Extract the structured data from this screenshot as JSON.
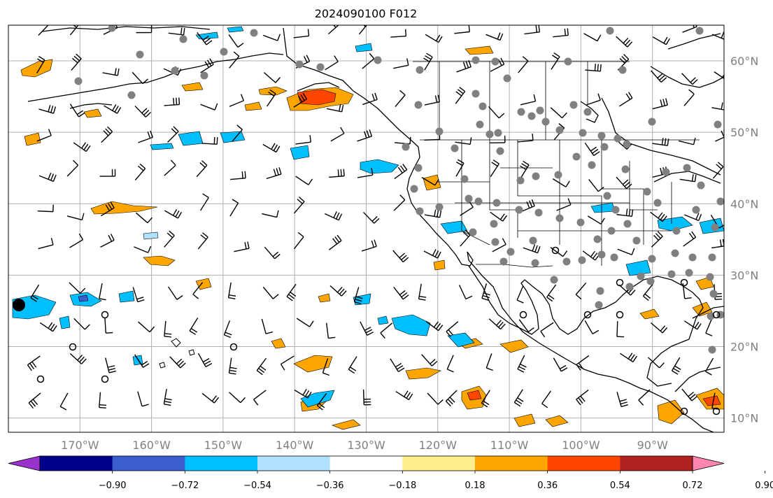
{
  "title": "2024090100 F012",
  "map": {
    "lon_range": [
      -180,
      -80
    ],
    "lat_range": [
      8,
      65
    ],
    "lon_ticks": [
      {
        "value": -170,
        "label": "170°W"
      },
      {
        "value": -160,
        "label": "160°W"
      },
      {
        "value": -150,
        "label": "150°W"
      },
      {
        "value": -140,
        "label": "140°W"
      },
      {
        "value": -130,
        "label": "130°W"
      },
      {
        "value": -120,
        "label": "120°W"
      },
      {
        "value": -110,
        "label": "110°W"
      },
      {
        "value": -100,
        "label": "100°W"
      },
      {
        "value": -90,
        "label": "90°W"
      }
    ],
    "lat_ticks": [
      {
        "value": 60,
        "label": "60°N"
      },
      {
        "value": 50,
        "label": "50°N"
      },
      {
        "value": 40,
        "label": "40°N"
      },
      {
        "value": 30,
        "label": "30°N"
      },
      {
        "value": 20,
        "label": "20°N"
      },
      {
        "value": 10,
        "label": "10°N"
      }
    ],
    "grid": true
  },
  "colorbar": {
    "ticks": [
      "−0.90",
      "−0.72",
      "−0.54",
      "−0.36",
      "−0.18",
      "0.18",
      "0.36",
      "0.54",
      "0.72",
      "0.90"
    ],
    "colors": [
      "#9932cc",
      "#00008b",
      "#3a5fcd",
      "#00bfff",
      "#b0e2ff",
      "#ffffff",
      "#ffec8b",
      "#ffa500",
      "#ff4500",
      "#b22222",
      "#ff86b0"
    ],
    "extend": "both"
  },
  "colors": {
    "land_line": "#000000",
    "grid": "#b0b0b0",
    "stations": "#808080",
    "tick_labels": "#808080"
  }
}
